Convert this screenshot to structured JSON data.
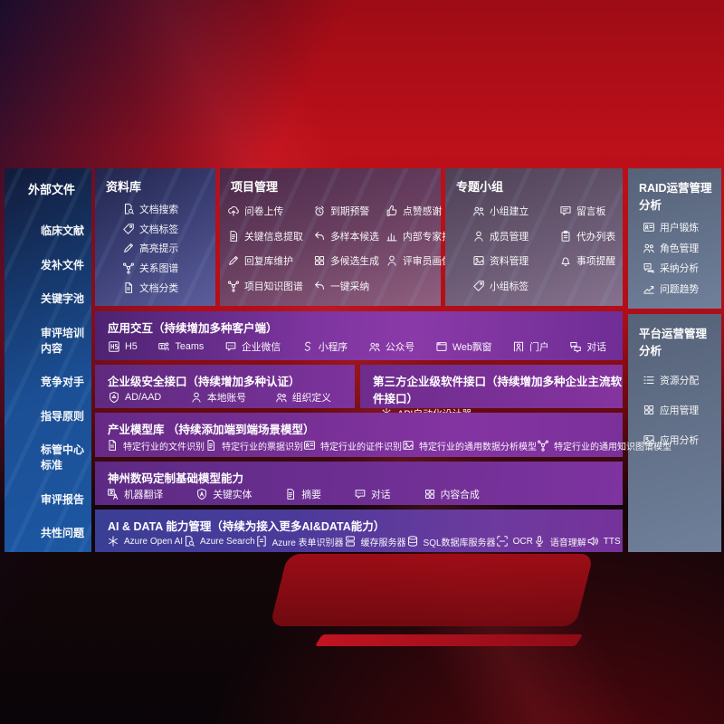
{
  "colors": {
    "background_red": "#b30f18",
    "sidebar_blue": "#1b4f95",
    "repository_indigo": "#393d72",
    "project_mauve": "#6d4263",
    "groups_gray_purple": "#6b5a73",
    "slate_panel": "#64728b",
    "purple_row": "#7e35a0",
    "aidata_indigo": "#3a3e95"
  },
  "left_sidebar": {
    "title": "外部文件",
    "items": [
      "临床文献",
      "发补文件",
      "关键字池",
      "审评培训内容",
      "竞争对手",
      "指导原则",
      "标管中心标准",
      "审评报告",
      "共性问题"
    ]
  },
  "repository": {
    "title": "资料库",
    "items": [
      {
        "label": "文档搜索",
        "icon": "doc-search"
      },
      {
        "label": "文档标签",
        "icon": "tag"
      },
      {
        "label": "高亮提示",
        "icon": "pen"
      },
      {
        "label": "关系图谱",
        "icon": "graph"
      },
      {
        "label": "文档分类",
        "icon": "doc"
      }
    ]
  },
  "project": {
    "title": "项目管理",
    "items": [
      {
        "label": "问卷上传",
        "icon": "cloud-upload"
      },
      {
        "label": "到期预警",
        "icon": "alarm"
      },
      {
        "label": "点赞感谢",
        "icon": "thumbs-up"
      },
      {
        "label": "关键信息提取",
        "icon": "doc-lines"
      },
      {
        "label": "多样本候选",
        "icon": "reply"
      },
      {
        "label": "内部专家排名",
        "icon": "bars"
      },
      {
        "label": "回复库维护",
        "icon": "pen"
      },
      {
        "label": "多候选生成",
        "icon": "grid"
      },
      {
        "label": "评审员画像",
        "icon": "person"
      },
      {
        "label": "项目知识图谱",
        "icon": "graph"
      },
      {
        "label": "一键采纳",
        "icon": "reply"
      }
    ]
  },
  "groups": {
    "title": "专题小组",
    "items": [
      {
        "label": "小组建立",
        "icon": "people"
      },
      {
        "label": "留言板",
        "icon": "bbs"
      },
      {
        "label": "成员管理",
        "icon": "person"
      },
      {
        "label": "代办列表",
        "icon": "clipboard"
      },
      {
        "label": "资料管理",
        "icon": "image"
      },
      {
        "label": "事项提醒",
        "icon": "bell"
      },
      {
        "label": "小组标签",
        "icon": "tag"
      }
    ]
  },
  "raid": {
    "title": "RAID运营管理分析",
    "items": [
      {
        "label": "用户锻炼",
        "icon": "id-card"
      },
      {
        "label": "角色管理",
        "icon": "people"
      },
      {
        "label": "采纳分析",
        "icon": "qa-chat"
      },
      {
        "label": "问题趋势",
        "icon": "trend"
      }
    ]
  },
  "platform": {
    "title": "平台运营管理分析",
    "items": [
      {
        "label": "资源分配",
        "icon": "list"
      },
      {
        "label": "应用管理",
        "icon": "grid"
      },
      {
        "label": "应用分析",
        "icon": "image"
      }
    ]
  },
  "interaction": {
    "title": "应用交互（持续增加多种客户端）",
    "items": [
      {
        "label": "H5",
        "icon": "h5"
      },
      {
        "label": "Teams",
        "icon": "teams"
      },
      {
        "label": "企业微信",
        "icon": "chat"
      },
      {
        "label": "小程序",
        "icon": "s-curve"
      },
      {
        "label": "公众号",
        "icon": "people"
      },
      {
        "label": "Web飘窗",
        "icon": "window"
      },
      {
        "label": "门户",
        "icon": "portal"
      },
      {
        "label": "对话",
        "icon": "dialog"
      }
    ]
  },
  "security": {
    "title": "企业级安全接口（持续增加多种认证）",
    "items": [
      {
        "label": "AD/AAD",
        "icon": "shield"
      },
      {
        "label": "本地账号",
        "icon": "person"
      },
      {
        "label": "组织定义",
        "icon": "people"
      }
    ]
  },
  "thirdparty": {
    "title": "第三方企业级软件接口（持续增加多种企业主流软件接口）",
    "items": [
      {
        "label": "API自动化设计器",
        "icon": "gear"
      }
    ]
  },
  "industry_models": {
    "title": "产业模型库 （持续添加端到端场景模型）",
    "items": [
      {
        "label": "特定行业的文件识别",
        "icon": "doc"
      },
      {
        "label": "特定行业的票据识别",
        "icon": "doc-lines"
      },
      {
        "label": "特定行业的证件识别",
        "icon": "id-card"
      },
      {
        "label": "特定行业的通用数据分析模型",
        "icon": "image"
      },
      {
        "label": "特定行业的通用知识图谱模型",
        "icon": "graph"
      }
    ]
  },
  "foundation_models": {
    "title": "神州数码定制基础模型能力",
    "items": [
      {
        "label": "机器翻译",
        "icon": "translate"
      },
      {
        "label": "关键实体",
        "icon": "entity"
      },
      {
        "label": "摘要",
        "icon": "doc-lines"
      },
      {
        "label": "对话",
        "icon": "chat"
      },
      {
        "label": "内容合成",
        "icon": "grid"
      }
    ]
  },
  "aidata": {
    "title": "AI & DATA 能力管理（持续为接入更多AI&DATA能力）",
    "items": [
      {
        "label": "Azure Open AI",
        "icon": "openai"
      },
      {
        "label": "Azure Search",
        "icon": "doc-search"
      },
      {
        "label": "Azure 表单识别器",
        "icon": "form"
      },
      {
        "label": "缓存服务器",
        "icon": "server"
      },
      {
        "label": "SQL数据库服务器",
        "icon": "database"
      },
      {
        "label": "OCR",
        "icon": "ocr"
      },
      {
        "label": "语音理解",
        "icon": "mic"
      },
      {
        "label": "TTS",
        "icon": "speaker"
      }
    ]
  }
}
